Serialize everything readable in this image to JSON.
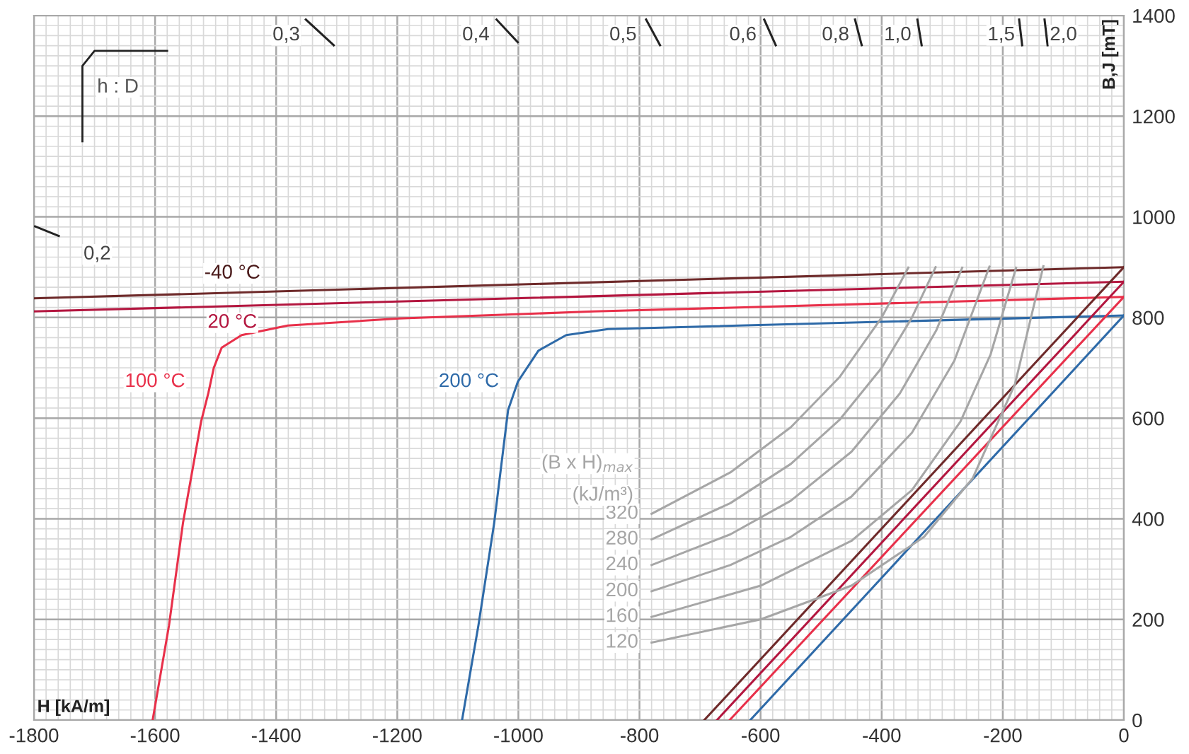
{
  "chart_data": {
    "type": "line",
    "xlabel": "H [kA/m]",
    "ylabel": "B,J [mT]",
    "xlim": [
      -1800,
      0
    ],
    "ylim": [
      0,
      1400
    ],
    "xticks": [
      -1800,
      -1600,
      -1400,
      -1200,
      -1000,
      -800,
      -600,
      -400,
      -200,
      0
    ],
    "yticks": [
      0,
      200,
      400,
      600,
      800,
      1000,
      1200,
      1400
    ],
    "grid": true,
    "marker": "none",
    "line_style": "solid",
    "annotations": [
      "-40 °C",
      "20 °C",
      "100 °C",
      "200 °C",
      "(B x H)$_{max}$",
      "(kJ/m³)",
      "h : D",
      "0,2",
      "0,3",
      "0,4",
      "0,5",
      "0,6",
      "0,8",
      "1,0",
      "1,5",
      "2,0"
    ],
    "series": [
      {
        "color": "#6e2a2a",
        "x": [
          -1800,
          0
        ],
        "values": [
          838,
          900
        ]
      },
      {
        "color": "#b3163f",
        "x": [
          -1800,
          0
        ],
        "values": [
          812,
          871
        ]
      },
      {
        "color": "#e8304a",
        "x": [
          -1604,
          -1577,
          -1554,
          -1524,
          -1512,
          -1503,
          -1490,
          -1457,
          -1381,
          -1197,
          -875,
          0
        ],
        "values": [
          0,
          188,
          391,
          593,
          650,
          700,
          740,
          765,
          784,
          798,
          812,
          841
        ]
      },
      {
        "color": "#2e6aa8",
        "x": [
          -1093,
          -1066,
          -1040,
          -1017,
          -1001,
          -967,
          -921,
          -852,
          0
        ],
        "values": [
          0,
          188,
          391,
          616,
          672,
          734,
          765,
          777,
          804
        ]
      },
      {
        "color": "#6e2a2a",
        "x": [
          -693,
          0
        ],
        "values": [
          0,
          900
        ]
      },
      {
        "color": "#b3163f",
        "x": [
          -672,
          0
        ],
        "values": [
          0,
          871
        ]
      },
      {
        "color": "#e8304a",
        "x": [
          -651,
          0
        ],
        "values": [
          0,
          841
        ]
      },
      {
        "color": "#2e6aa8",
        "x": [
          -617,
          0
        ],
        "values": [
          0,
          804
        ]
      },
      {
        "name": "320",
        "color": "#a6a6a6",
        "x": [
          -780,
          -650,
          -550,
          -470,
          -400,
          -356
        ],
        "values": [
          410,
          492,
          582,
          681,
          800,
          899
        ]
      },
      {
        "name": "280",
        "color": "#a6a6a6",
        "x": [
          -780,
          -650,
          -550,
          -470,
          -400,
          -350,
          -311
        ],
        "values": [
          359,
          431,
          509,
          596,
          700,
          800,
          900
        ]
      },
      {
        "name": "240",
        "color": "#a6a6a6",
        "x": [
          -780,
          -650,
          -550,
          -450,
          -370,
          -310,
          -267
        ],
        "values": [
          308,
          369,
          436,
          533,
          649,
          774,
          899
        ]
      },
      {
        "name": "200",
        "color": "#a6a6a6",
        "x": [
          -780,
          -650,
          -550,
          -450,
          -350,
          -280,
          -222
        ],
        "values": [
          256,
          308,
          364,
          444,
          571,
          714,
          901
        ]
      },
      {
        "name": "160",
        "color": "#a6a6a6",
        "x": [
          -780,
          -600,
          -450,
          -350,
          -270,
          -220,
          -178
        ],
        "values": [
          205,
          267,
          356,
          457,
          593,
          727,
          899
        ]
      },
      {
        "name": "120",
        "color": "#a6a6a6",
        "x": [
          -780,
          -600,
          -450,
          -330,
          -250,
          -180,
          -133
        ],
        "values": [
          154,
          200,
          267,
          364,
          480,
          667,
          902
        ]
      },
      {
        "color": "#222222",
        "x": [
          -1798,
          -1759,
          null,
          -1351,
          -1305,
          null,
          -1036,
          -1001,
          null,
          -789,
          -766,
          null,
          -594,
          -575,
          null,
          -444,
          -433,
          null,
          -341,
          -334,
          null,
          -173,
          -168,
          null,
          -131,
          -126
        ],
        "values": [
          981,
          962,
          null,
          1392,
          1341,
          null,
          1392,
          1347,
          null,
          1392,
          1341,
          null,
          1392,
          1341,
          null,
          1392,
          1341,
          null,
          1392,
          1341,
          null,
          1392,
          1341,
          null,
          1392,
          1341
        ]
      }
    ]
  }
}
